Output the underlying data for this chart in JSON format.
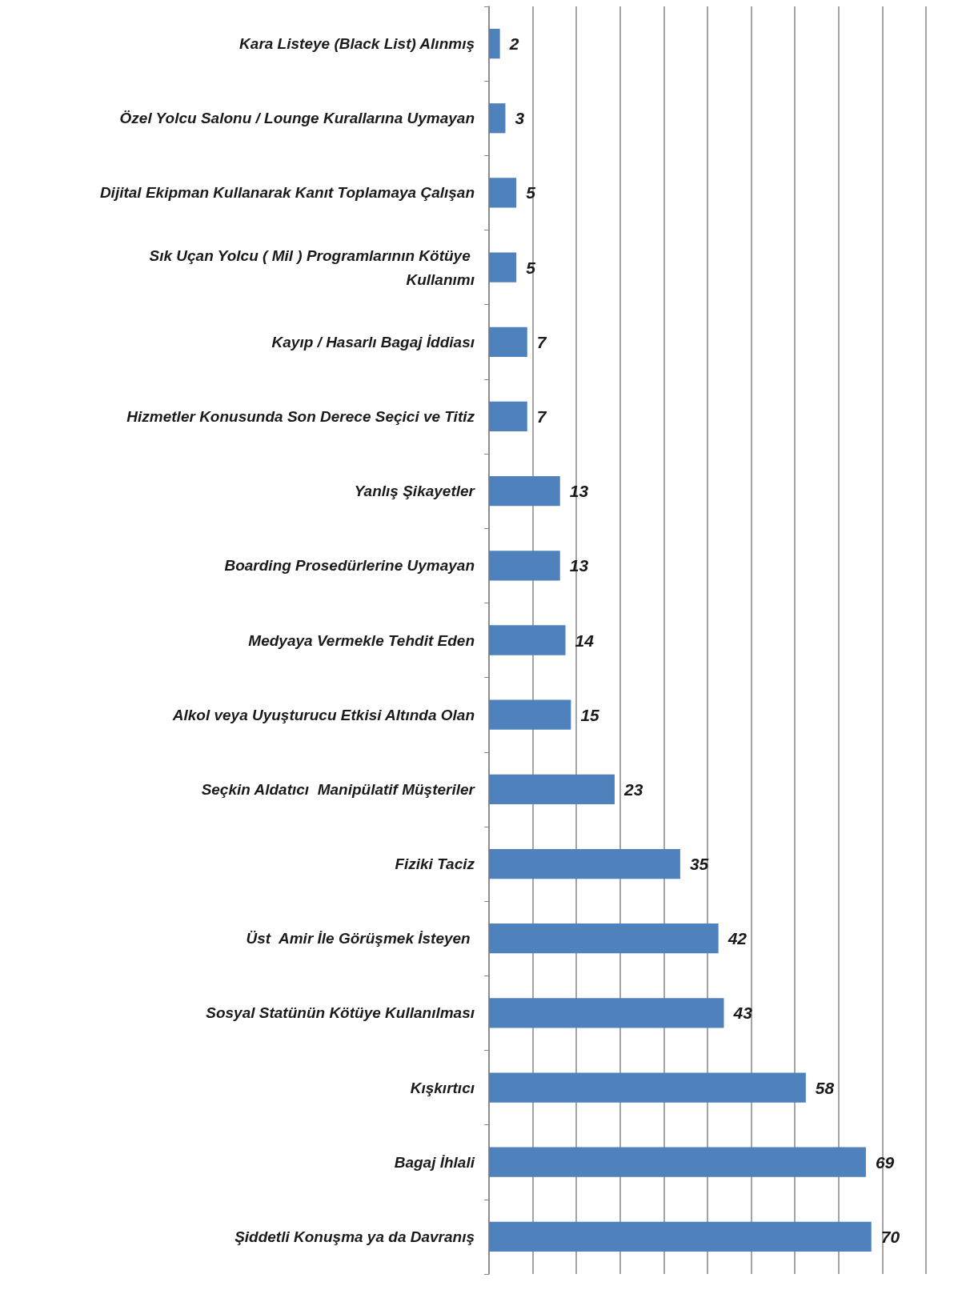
{
  "chart_data": {
    "type": "bar",
    "orientation": "horizontal",
    "categories": [
      "Kara Listeye (Black List) Alınmış",
      "Özel Yolcu Salonu / Lounge Kurallarına Uymayan",
      "Dijital Ekipman Kullanarak Kanıt Toplamaya Çalışan",
      "Sık Uçan Yolcu ( Mil ) Programlarının Kötüye Kullanımı",
      "Kayıp / Hasarlı Bagaj İddiası",
      "Hizmetler Konusunda Son Derece Seçici ve Titiz",
      "Yanlış Şikayetler",
      "Boarding Prosedürlerine Uymayan",
      "Medyaya Vermekle Tehdit Eden",
      "Alkol veya Uyuşturucu Etkisi Altında Olan",
      "Seçkin Aldatıcı  Manipülatif Müşteriler",
      "Fiziki Taciz",
      "Üst  Amir İle Görüşmek İsteyen ",
      "Sosyal Statünün Kötüye Kullanılması",
      "Kışkırtıcı",
      "Bagaj İhlali",
      "Şiddetli Konuşma ya da Davranış"
    ],
    "values": [
      2,
      3,
      5,
      5,
      7,
      7,
      13,
      13,
      14,
      15,
      23,
      35,
      42,
      43,
      58,
      69,
      70
    ],
    "color": "#4f81bd",
    "data_labels": true,
    "grid": "x",
    "tick_labels": "y",
    "xlim": [
      0,
      80
    ],
    "xticks": [
      {
        "value": 0,
        "label": null
      },
      {
        "value": 8,
        "label": null
      },
      {
        "value": 16,
        "label": null
      },
      {
        "value": 24,
        "label": null
      },
      {
        "value": 32,
        "label": null
      },
      {
        "value": 40,
        "label": null
      },
      {
        "value": 48,
        "label": null
      },
      {
        "value": 56,
        "label": null
      },
      {
        "value": 64,
        "label": null
      },
      {
        "value": 72,
        "label": null
      },
      {
        "value": 80,
        "label": null
      }
    ]
  }
}
